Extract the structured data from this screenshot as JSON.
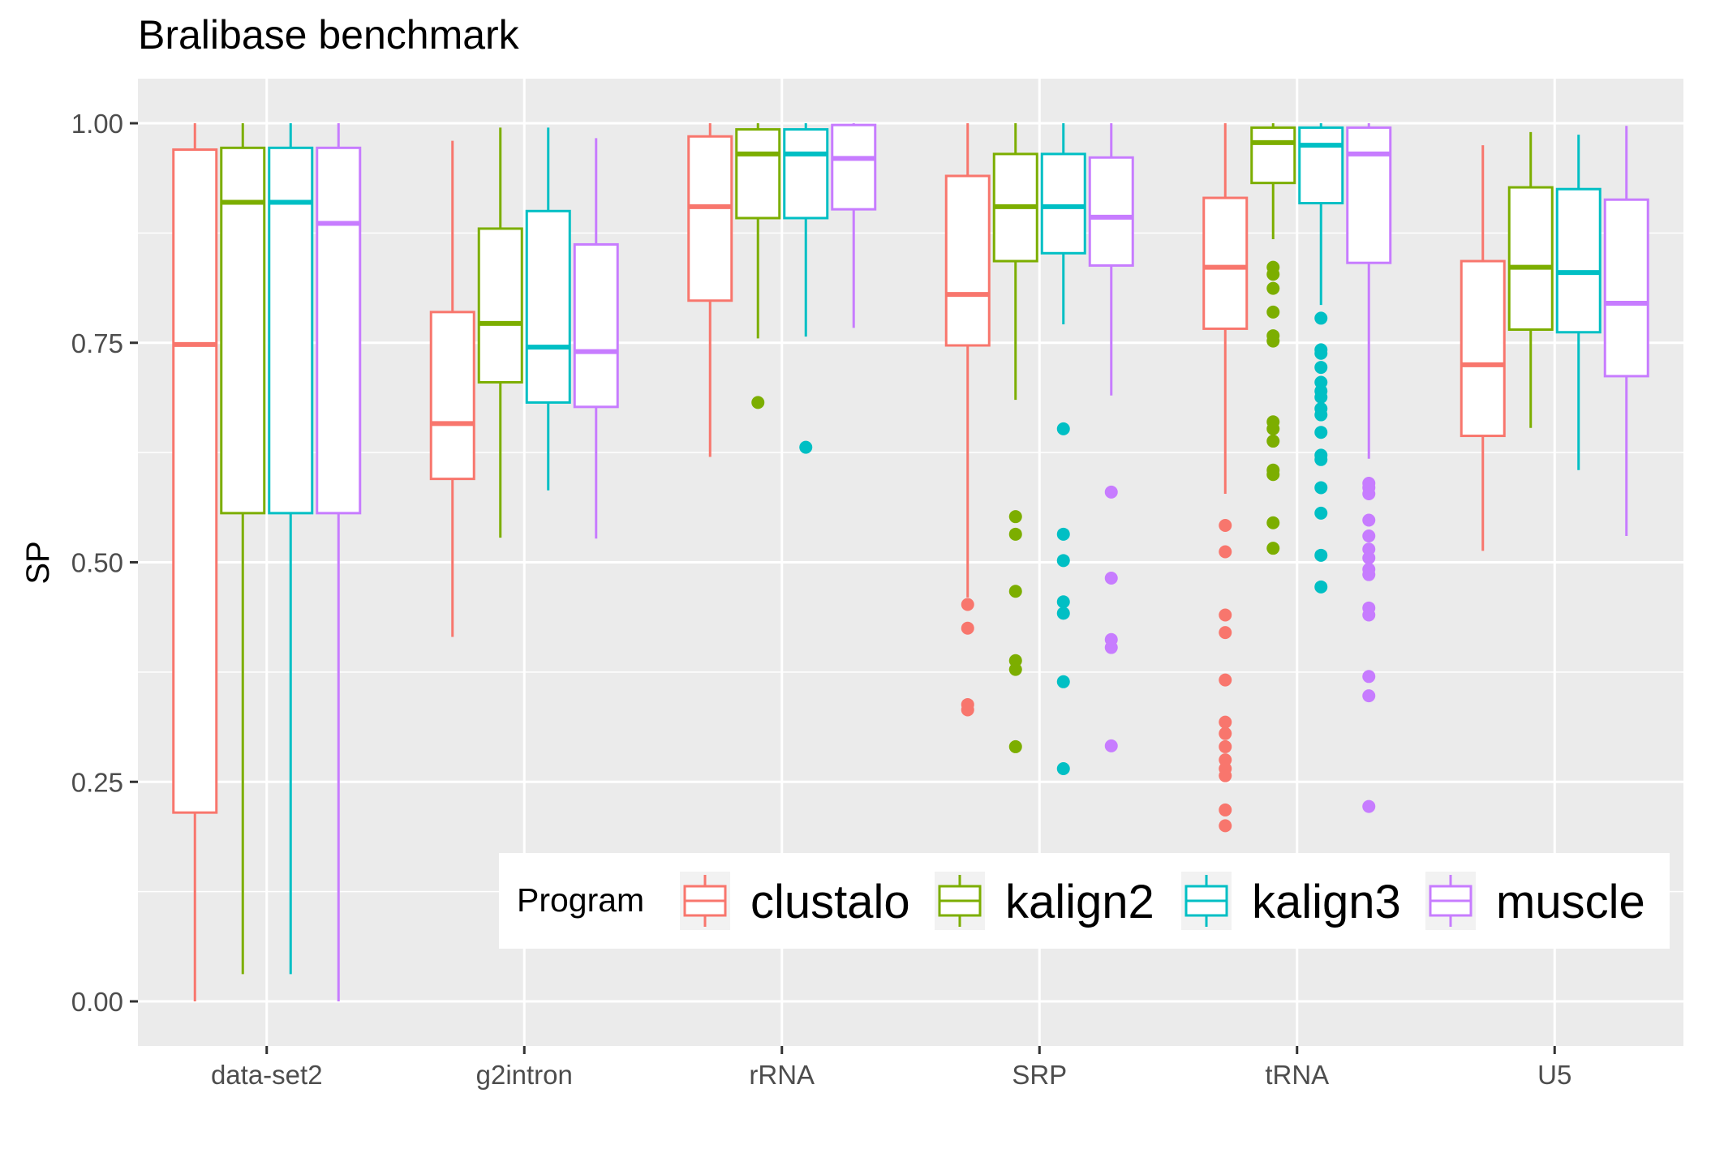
{
  "chart_data": {
    "type": "box",
    "title": "Bralibase benchmark",
    "xlabel": "",
    "ylabel": "SP",
    "ylim": [
      -0.05,
      1.05
    ],
    "yticks": [
      0.0,
      0.25,
      0.5,
      0.75,
      1.0
    ],
    "ytick_labels": [
      "0.00",
      "0.25",
      "0.50",
      "0.75",
      "1.00"
    ],
    "grid": true,
    "background": "#ebebeb",
    "categories": [
      "data-set2",
      "g2intron",
      "rRNA",
      "SRP",
      "tRNA",
      "U5"
    ],
    "legend": {
      "title": "Program",
      "position": "bottom-right-inside"
    },
    "series": [
      {
        "name": "clustalo",
        "color": "#F8766D",
        "boxes": [
          {
            "whisker_low": 0.0,
            "q1": 0.215,
            "median": 0.748,
            "q3": 0.97,
            "whisker_high": 1.0,
            "outliers": []
          },
          {
            "whisker_low": 0.415,
            "q1": 0.595,
            "median": 0.658,
            "q3": 0.785,
            "whisker_high": 0.98,
            "outliers": []
          },
          {
            "whisker_low": 0.62,
            "q1": 0.798,
            "median": 0.905,
            "q3": 0.985,
            "whisker_high": 1.0,
            "outliers": []
          },
          {
            "whisker_low": 0.46,
            "q1": 0.747,
            "median": 0.805,
            "q3": 0.94,
            "whisker_high": 1.0,
            "outliers": [
              0.452,
              0.425,
              0.338,
              0.332
            ]
          },
          {
            "whisker_low": 0.578,
            "q1": 0.766,
            "median": 0.836,
            "q3": 0.915,
            "whisker_high": 1.0,
            "outliers": [
              0.542,
              0.512,
              0.44,
              0.42,
              0.366,
              0.318,
              0.305,
              0.29,
              0.275,
              0.265,
              0.257,
              0.218,
              0.2
            ]
          },
          {
            "whisker_low": 0.513,
            "q1": 0.644,
            "median": 0.725,
            "q3": 0.843,
            "whisker_high": 0.975,
            "outliers": []
          }
        ]
      },
      {
        "name": "kalign2",
        "color": "#7CAE00",
        "boxes": [
          {
            "whisker_low": 0.031,
            "q1": 0.556,
            "median": 0.91,
            "q3": 0.972,
            "whisker_high": 1.0,
            "outliers": []
          },
          {
            "whisker_low": 0.528,
            "q1": 0.705,
            "median": 0.772,
            "q3": 0.88,
            "whisker_high": 0.995,
            "outliers": []
          },
          {
            "whisker_low": 0.755,
            "q1": 0.892,
            "median": 0.965,
            "q3": 0.993,
            "whisker_high": 1.0,
            "outliers": [
              0.682
            ]
          },
          {
            "whisker_low": 0.685,
            "q1": 0.843,
            "median": 0.905,
            "q3": 0.965,
            "whisker_high": 1.0,
            "outliers": [
              0.552,
              0.532,
              0.467,
              0.388,
              0.378,
              0.29
            ]
          },
          {
            "whisker_low": 0.868,
            "q1": 0.932,
            "median": 0.978,
            "q3": 0.995,
            "whisker_high": 1.0,
            "outliers": [
              0.836,
              0.828,
              0.812,
              0.785,
              0.758,
              0.752,
              0.66,
              0.652,
              0.638,
              0.605,
              0.6,
              0.545,
              0.516
            ]
          },
          {
            "whisker_low": 0.653,
            "q1": 0.765,
            "median": 0.836,
            "q3": 0.927,
            "whisker_high": 0.99,
            "outliers": []
          }
        ]
      },
      {
        "name": "kalign3",
        "color": "#00BFC4",
        "boxes": [
          {
            "whisker_low": 0.031,
            "q1": 0.556,
            "median": 0.91,
            "q3": 0.972,
            "whisker_high": 1.0,
            "outliers": []
          },
          {
            "whisker_low": 0.582,
            "q1": 0.682,
            "median": 0.745,
            "q3": 0.9,
            "whisker_high": 0.995,
            "outliers": []
          },
          {
            "whisker_low": 0.757,
            "q1": 0.892,
            "median": 0.965,
            "q3": 0.993,
            "whisker_high": 1.0,
            "outliers": [
              0.631
            ]
          },
          {
            "whisker_low": 0.771,
            "q1": 0.852,
            "median": 0.905,
            "q3": 0.965,
            "whisker_high": 1.0,
            "outliers": [
              0.652,
              0.532,
              0.502,
              0.455,
              0.442,
              0.364,
              0.265
            ]
          },
          {
            "whisker_low": 0.793,
            "q1": 0.909,
            "median": 0.975,
            "q3": 0.995,
            "whisker_high": 1.0,
            "outliers": [
              0.778,
              0.742,
              0.738,
              0.722,
              0.705,
              0.695,
              0.688,
              0.675,
              0.668,
              0.648,
              0.622,
              0.617,
              0.585,
              0.556,
              0.508,
              0.472
            ]
          },
          {
            "whisker_low": 0.605,
            "q1": 0.762,
            "median": 0.83,
            "q3": 0.925,
            "whisker_high": 0.987,
            "outliers": []
          }
        ]
      },
      {
        "name": "muscle",
        "color": "#C77CFF",
        "boxes": [
          {
            "whisker_low": 0.0,
            "q1": 0.556,
            "median": 0.886,
            "q3": 0.972,
            "whisker_high": 1.0,
            "outliers": []
          },
          {
            "whisker_low": 0.527,
            "q1": 0.677,
            "median": 0.74,
            "q3": 0.862,
            "whisker_high": 0.983,
            "outliers": []
          },
          {
            "whisker_low": 0.767,
            "q1": 0.902,
            "median": 0.96,
            "q3": 0.998,
            "whisker_high": 1.0,
            "outliers": []
          },
          {
            "whisker_low": 0.69,
            "q1": 0.838,
            "median": 0.893,
            "q3": 0.961,
            "whisker_high": 1.0,
            "outliers": [
              0.58,
              0.482,
              0.412,
              0.403,
              0.291
            ]
          },
          {
            "whisker_low": 0.618,
            "q1": 0.841,
            "median": 0.965,
            "q3": 0.995,
            "whisker_high": 1.0,
            "outliers": [
              0.59,
              0.585,
              0.578,
              0.548,
              0.53,
              0.515,
              0.505,
              0.492,
              0.486,
              0.448,
              0.44,
              0.37,
              0.348,
              0.222
            ]
          },
          {
            "whisker_low": 0.53,
            "q1": 0.712,
            "median": 0.795,
            "q3": 0.913,
            "whisker_high": 0.997,
            "outliers": []
          }
        ]
      }
    ]
  }
}
